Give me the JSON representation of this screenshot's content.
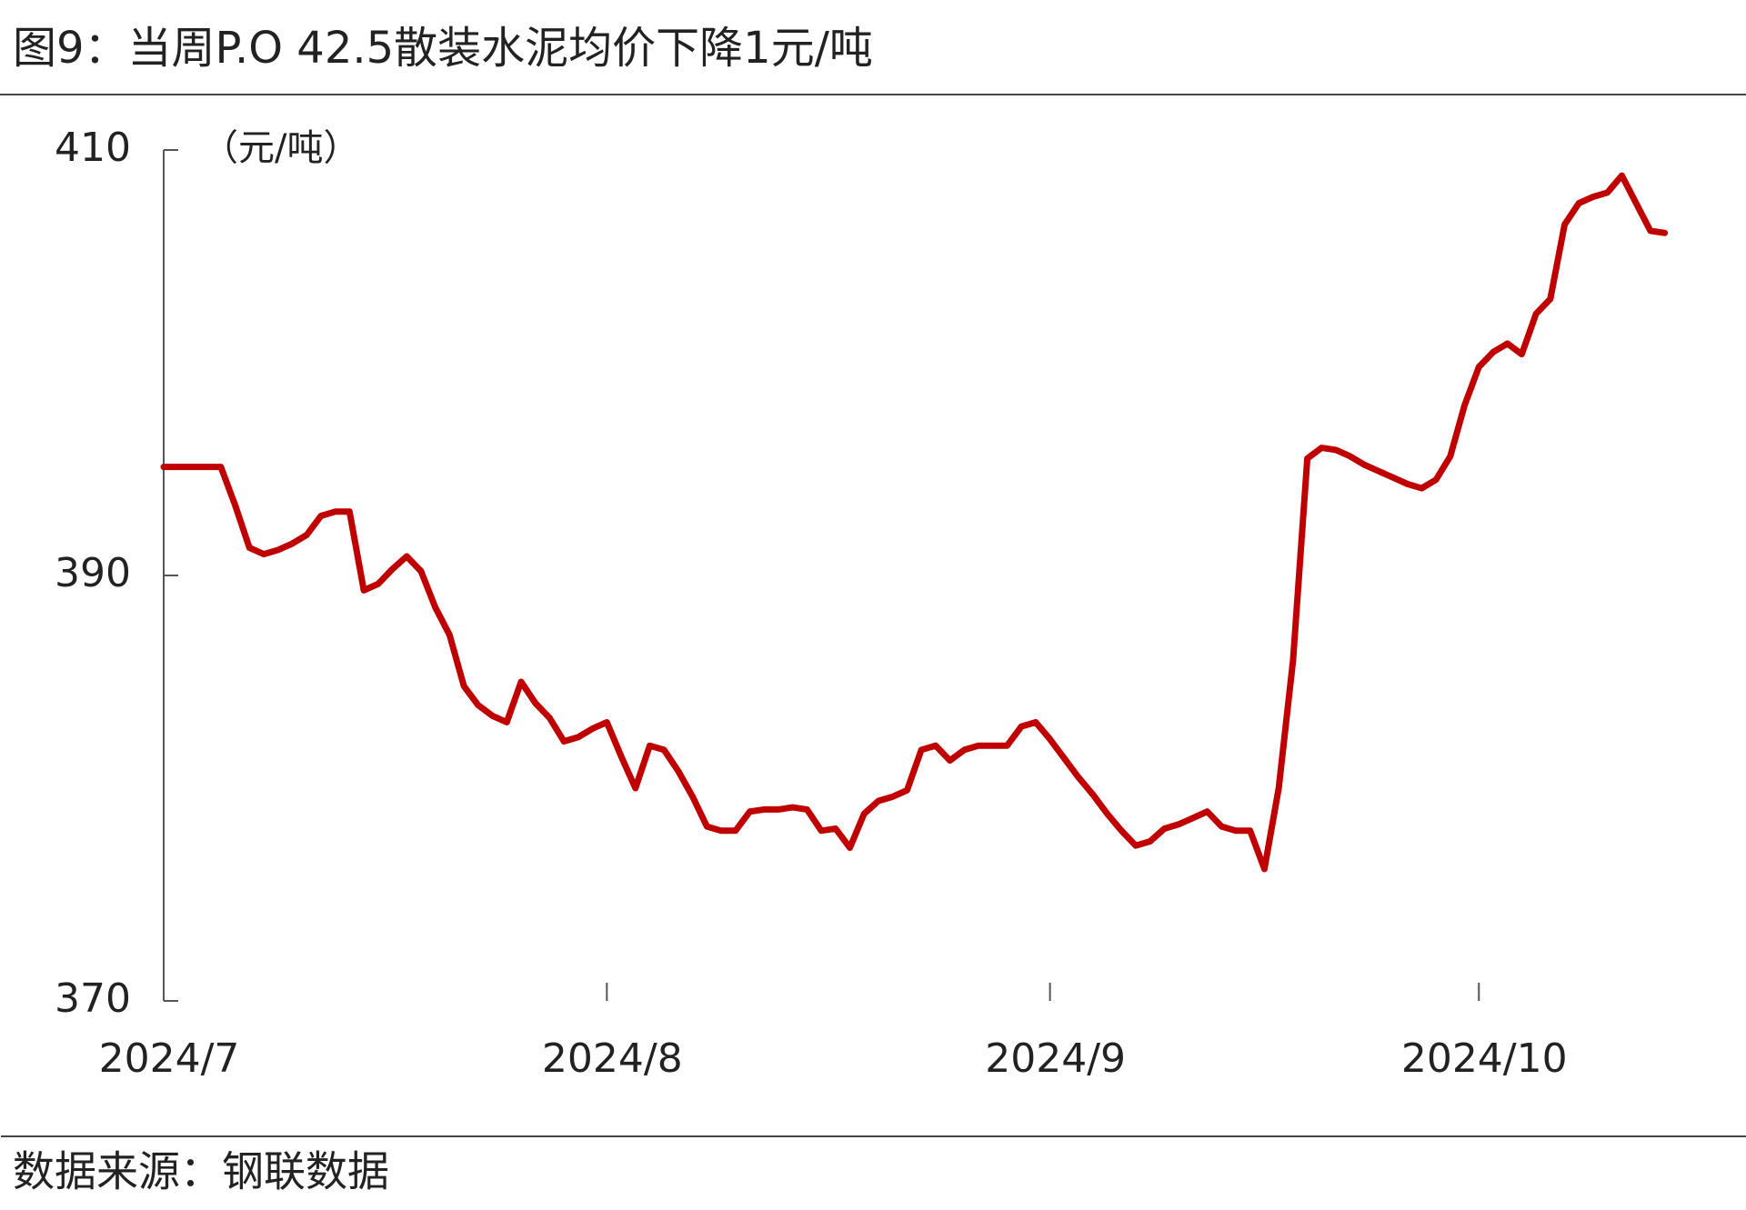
{
  "chart_data": {
    "type": "line",
    "title": "图9：当周P.O 42.5散装水泥均价下降1元/吨",
    "y_label": "（元/吨）",
    "source": "数据来源：钢联数据",
    "categories": [
      "2024/7",
      null,
      null,
      null,
      null,
      null,
      null,
      null,
      null,
      null,
      null,
      null,
      null,
      null,
      null,
      null,
      null,
      null,
      null,
      null,
      null,
      null,
      null,
      null,
      null,
      null,
      null,
      null,
      null,
      null,
      null,
      "2024/8",
      null,
      null,
      null,
      null,
      null,
      null,
      null,
      null,
      null,
      null,
      null,
      null,
      null,
      null,
      null,
      null,
      null,
      null,
      null,
      null,
      null,
      null,
      null,
      null,
      null,
      null,
      null,
      null,
      null,
      null,
      "2024/9",
      null,
      null,
      null,
      null,
      null,
      null,
      null,
      null,
      null,
      null,
      null,
      null,
      null,
      null,
      null,
      null,
      null,
      null,
      null,
      null,
      null,
      null,
      null,
      null,
      null,
      null,
      null,
      null,
      null,
      "2024/10",
      null,
      null,
      null,
      null,
      null,
      null,
      null,
      null,
      null,
      null,
      null,
      null,
      null
    ],
    "series": [
      {
        "name": "P.O 42.5散装水泥均价",
        "color": "#c00000",
        "values": [
          395.1,
          395.1,
          395.1,
          395.1,
          395.1,
          393.3,
          391.3,
          391.0,
          391.2,
          391.5,
          391.9,
          392.8,
          393.0,
          393.0,
          389.3,
          389.6,
          390.3,
          390.9,
          390.2,
          388.5,
          387.2,
          384.8,
          383.9,
          383.4,
          383.1,
          385.0,
          384.0,
          383.3,
          382.2,
          382.4,
          382.8,
          383.1,
          381.5,
          380.0,
          382.0,
          381.8,
          380.8,
          379.6,
          378.2,
          378.0,
          378.0,
          378.9,
          379.0,
          379.0,
          379.1,
          379.0,
          378.0,
          378.1,
          377.2,
          378.8,
          379.4,
          379.6,
          379.9,
          381.8,
          382.0,
          381.3,
          381.8,
          382.0,
          382.0,
          382.0,
          382.9,
          383.1,
          382.3,
          381.4,
          380.5,
          379.7,
          378.8,
          378.0,
          377.3,
          377.5,
          378.1,
          378.3,
          378.6,
          378.9,
          378.2,
          378.0,
          378.0,
          376.2,
          380.0,
          386.0,
          395.5,
          396.0,
          395.9,
          395.6,
          395.2,
          394.9,
          394.6,
          394.3,
          394.1,
          394.5,
          395.6,
          398.0,
          399.8,
          400.5,
          400.9,
          400.4,
          402.3,
          403.0,
          406.5,
          407.5,
          407.8,
          408.0,
          408.8,
          407.5,
          406.2,
          406.1
        ]
      }
    ],
    "ylim": [
      370,
      410
    ],
    "yticks": [
      370,
      390,
      410
    ],
    "grid": false
  }
}
